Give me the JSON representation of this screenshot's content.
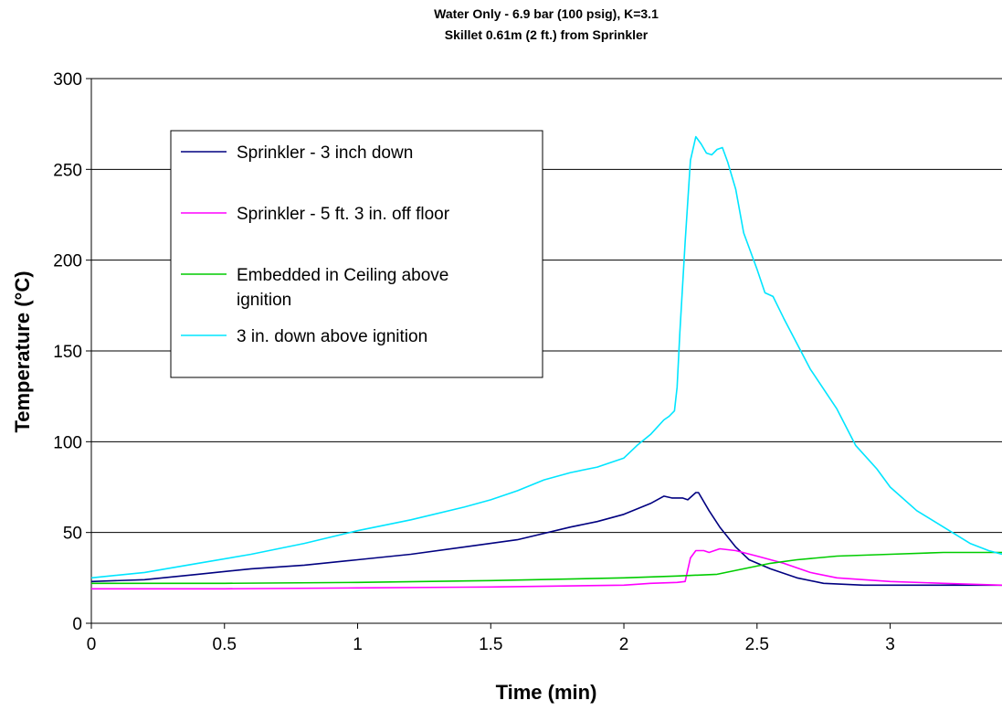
{
  "chart_data": {
    "type": "line",
    "title": "Water Only - 6.9 bar (100 psig), K=3.1",
    "subtitle": "Skillet 0.61m (2 ft.) from Sprinkler",
    "xlabel": "Time (min)",
    "ylabel": "Temperature (°C)",
    "xlim": [
      0,
      3.42
    ],
    "ylim": [
      0,
      300
    ],
    "x_ticks": [
      0,
      0.5,
      1,
      1.5,
      2,
      2.5,
      3
    ],
    "x_tick_labels": [
      "0",
      "0.5",
      "1",
      "1.5",
      "2",
      "2.5",
      "3"
    ],
    "y_ticks": [
      0,
      50,
      100,
      150,
      200,
      250,
      300
    ],
    "y_tick_labels": [
      "0",
      "50",
      "100",
      "150",
      "200",
      "250",
      "300"
    ],
    "grid": "horizontal",
    "legend_position": "upper-left",
    "series": [
      {
        "name": "Sprinkler - 3 inch down",
        "color": "#000080",
        "points": [
          [
            0,
            23
          ],
          [
            0.2,
            24
          ],
          [
            0.4,
            27
          ],
          [
            0.6,
            30
          ],
          [
            0.8,
            32
          ],
          [
            1.0,
            35
          ],
          [
            1.2,
            38
          ],
          [
            1.4,
            42
          ],
          [
            1.6,
            46
          ],
          [
            1.8,
            53
          ],
          [
            1.9,
            56
          ],
          [
            2.0,
            60
          ],
          [
            2.1,
            66
          ],
          [
            2.15,
            70
          ],
          [
            2.18,
            69
          ],
          [
            2.22,
            69
          ],
          [
            2.24,
            68
          ],
          [
            2.27,
            72
          ],
          [
            2.28,
            72
          ],
          [
            2.32,
            62
          ],
          [
            2.36,
            53
          ],
          [
            2.42,
            42
          ],
          [
            2.47,
            35
          ],
          [
            2.55,
            30
          ],
          [
            2.65,
            25
          ],
          [
            2.75,
            22
          ],
          [
            2.9,
            21
          ],
          [
            3.1,
            21
          ],
          [
            3.42,
            21
          ]
        ]
      },
      {
        "name": "Sprinkler - 5 ft. 3 in. off floor",
        "color": "#ff00ff",
        "points": [
          [
            0,
            19
          ],
          [
            0.5,
            19
          ],
          [
            1.0,
            19.5
          ],
          [
            1.5,
            20
          ],
          [
            2.0,
            21
          ],
          [
            2.1,
            22
          ],
          [
            2.2,
            22.5
          ],
          [
            2.23,
            23
          ],
          [
            2.25,
            36
          ],
          [
            2.27,
            40
          ],
          [
            2.3,
            40
          ],
          [
            2.32,
            39
          ],
          [
            2.36,
            41
          ],
          [
            2.42,
            40
          ],
          [
            2.5,
            37
          ],
          [
            2.6,
            33
          ],
          [
            2.7,
            28
          ],
          [
            2.8,
            25
          ],
          [
            2.9,
            24
          ],
          [
            3.0,
            23
          ],
          [
            3.2,
            22
          ],
          [
            3.42,
            21
          ]
        ]
      },
      {
        "name": "Embedded in Ceiling above ignition",
        "color": "#00cc00",
        "points": [
          [
            0,
            22
          ],
          [
            0.5,
            22
          ],
          [
            1.0,
            22.5
          ],
          [
            1.5,
            23.5
          ],
          [
            2.0,
            25
          ],
          [
            2.2,
            26
          ],
          [
            2.35,
            27
          ],
          [
            2.45,
            30
          ],
          [
            2.55,
            33
          ],
          [
            2.65,
            35
          ],
          [
            2.8,
            37
          ],
          [
            3.0,
            38
          ],
          [
            3.2,
            39
          ],
          [
            3.42,
            39
          ]
        ]
      },
      {
        "name": "3 in. down above ignition",
        "color": "#00e5ff",
        "points": [
          [
            0,
            25
          ],
          [
            0.2,
            28
          ],
          [
            0.4,
            33
          ],
          [
            0.6,
            38
          ],
          [
            0.8,
            44
          ],
          [
            1.0,
            51
          ],
          [
            1.2,
            57
          ],
          [
            1.4,
            64
          ],
          [
            1.5,
            68
          ],
          [
            1.6,
            73
          ],
          [
            1.7,
            79
          ],
          [
            1.8,
            83
          ],
          [
            1.9,
            86
          ],
          [
            2.0,
            91
          ],
          [
            2.05,
            98
          ],
          [
            2.1,
            104
          ],
          [
            2.15,
            112
          ],
          [
            2.17,
            114
          ],
          [
            2.19,
            117
          ],
          [
            2.2,
            130
          ],
          [
            2.21,
            160
          ],
          [
            2.23,
            210
          ],
          [
            2.25,
            255
          ],
          [
            2.27,
            268
          ],
          [
            2.29,
            264
          ],
          [
            2.31,
            259
          ],
          [
            2.33,
            258
          ],
          [
            2.35,
            261
          ],
          [
            2.37,
            262
          ],
          [
            2.39,
            254
          ],
          [
            2.42,
            239
          ],
          [
            2.45,
            215
          ],
          [
            2.5,
            195
          ],
          [
            2.53,
            182
          ],
          [
            2.56,
            180
          ],
          [
            2.6,
            168
          ],
          [
            2.7,
            140
          ],
          [
            2.8,
            118
          ],
          [
            2.87,
            98
          ],
          [
            2.95,
            85
          ],
          [
            3.0,
            75
          ],
          [
            3.1,
            62
          ],
          [
            3.2,
            53
          ],
          [
            3.3,
            44
          ],
          [
            3.37,
            40
          ],
          [
            3.42,
            38
          ]
        ]
      }
    ]
  }
}
